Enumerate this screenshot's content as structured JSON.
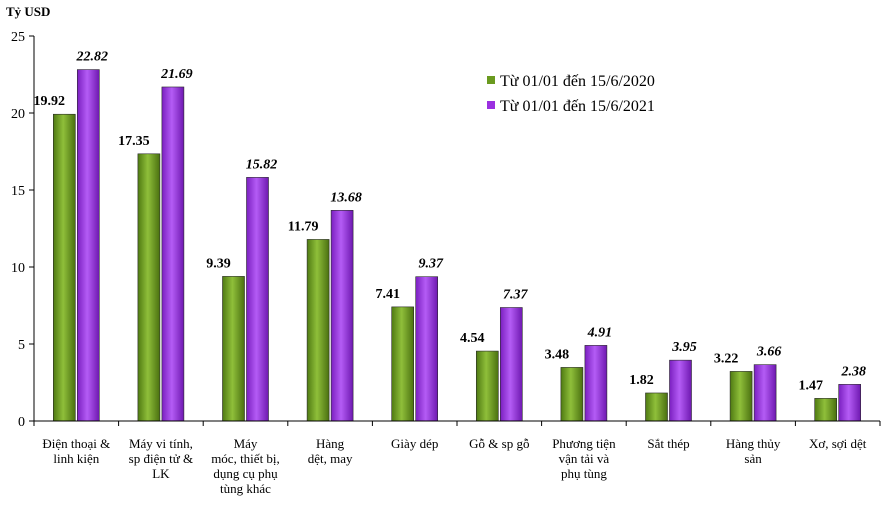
{
  "chart_data": {
    "type": "bar",
    "ylabel": "Tỷ USD",
    "ylim": [
      0,
      25
    ],
    "yticks": [
      0,
      5,
      10,
      15,
      20,
      25
    ],
    "grid": false,
    "legend_position": "top-right",
    "categories": [
      [
        "Điện thoại &",
        "linh kiện"
      ],
      [
        "Máy vi tính,",
        "sp điện tử &",
        "LK"
      ],
      [
        "Máy",
        "móc, thiết bị,",
        "dụng cụ phụ",
        "tùng khác"
      ],
      [
        "Hàng",
        "dệt, may"
      ],
      [
        "Giày dép"
      ],
      [
        "Gỗ & sp gỗ"
      ],
      [
        "Phương tiện",
        "vận tải và",
        "phụ tùng"
      ],
      [
        "Sắt thép"
      ],
      [
        "Hàng thủy",
        "sản"
      ],
      [
        "Xơ, sợi dệt"
      ]
    ],
    "series": [
      {
        "name": "Từ 01/01 đến 15/6/2020",
        "color": "#6a9a1f",
        "values": [
          19.92,
          17.35,
          9.39,
          11.79,
          7.41,
          4.54,
          3.48,
          1.82,
          3.22,
          1.47
        ],
        "labels": [
          "19.92",
          "17.35",
          "9.39",
          "11.79",
          "7.41",
          "4.54",
          "3.48",
          "1.82",
          "3.22",
          "1.47"
        ]
      },
      {
        "name": "Từ 01/01 đến 15/6/2021",
        "color": "#9b30e0",
        "values": [
          22.82,
          21.69,
          15.82,
          13.68,
          9.37,
          7.37,
          4.91,
          3.95,
          3.66,
          2.38
        ],
        "labels": [
          "22.82",
          "21.69",
          "15.82",
          "13.68",
          "9.37",
          "7.37",
          "4.91",
          "3.95",
          "3.66",
          "2.38"
        ]
      }
    ]
  }
}
